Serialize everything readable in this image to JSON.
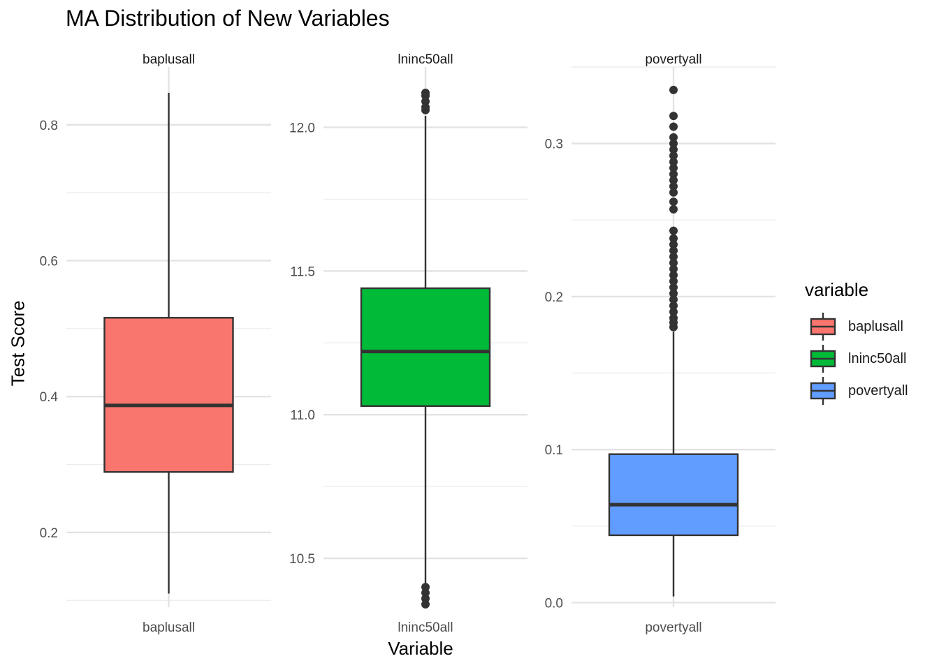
{
  "chart_data": {
    "type": "box",
    "title": "MA Distribution of New Variables",
    "xlabel": "Variable",
    "ylabel": "Test Score",
    "legend": {
      "title": "variable",
      "position": "right"
    },
    "facets": [
      {
        "name": "baplusall",
        "color": "#F8766D",
        "ylim": [
          0.09,
          0.885
        ],
        "yticks": [
          0.2,
          0.4,
          0.6,
          0.8
        ],
        "ytick_labels": [
          "0.2",
          "0.4",
          "0.6",
          "0.8"
        ],
        "box": {
          "min": 0.11,
          "q1": 0.289,
          "median": 0.387,
          "q3": 0.516,
          "max": 0.847
        },
        "outliers": []
      },
      {
        "name": "lninc50all",
        "color": "#00BA38",
        "ylim": [
          10.33,
          12.21
        ],
        "yticks": [
          10.5,
          11.0,
          11.5,
          12.0
        ],
        "ytick_labels": [
          "10.5",
          "11.0",
          "11.5",
          "12.0"
        ],
        "box": {
          "min": 10.41,
          "q1": 11.03,
          "median": 11.22,
          "q3": 11.44,
          "max": 12.04
        },
        "outliers": [
          10.34,
          10.36,
          10.38,
          10.4,
          12.06,
          12.07,
          12.09,
          12.11,
          12.12
        ]
      },
      {
        "name": "povertyall",
        "color": "#619CFF",
        "ylim": [
          -0.003,
          0.35
        ],
        "yticks": [
          0.0,
          0.1,
          0.2,
          0.3
        ],
        "ytick_labels": [
          "0.0",
          "0.1",
          "0.2",
          "0.3"
        ],
        "box": {
          "min": 0.004,
          "q1": 0.044,
          "median": 0.064,
          "q3": 0.097,
          "max": 0.177
        },
        "outliers": [
          0.18,
          0.183,
          0.186,
          0.19,
          0.194,
          0.198,
          0.202,
          0.206,
          0.21,
          0.214,
          0.218,
          0.222,
          0.226,
          0.23,
          0.234,
          0.238,
          0.243,
          0.257,
          0.262,
          0.268,
          0.272,
          0.276,
          0.28,
          0.284,
          0.288,
          0.292,
          0.296,
          0.3,
          0.304,
          0.311,
          0.318,
          0.335
        ]
      }
    ]
  }
}
